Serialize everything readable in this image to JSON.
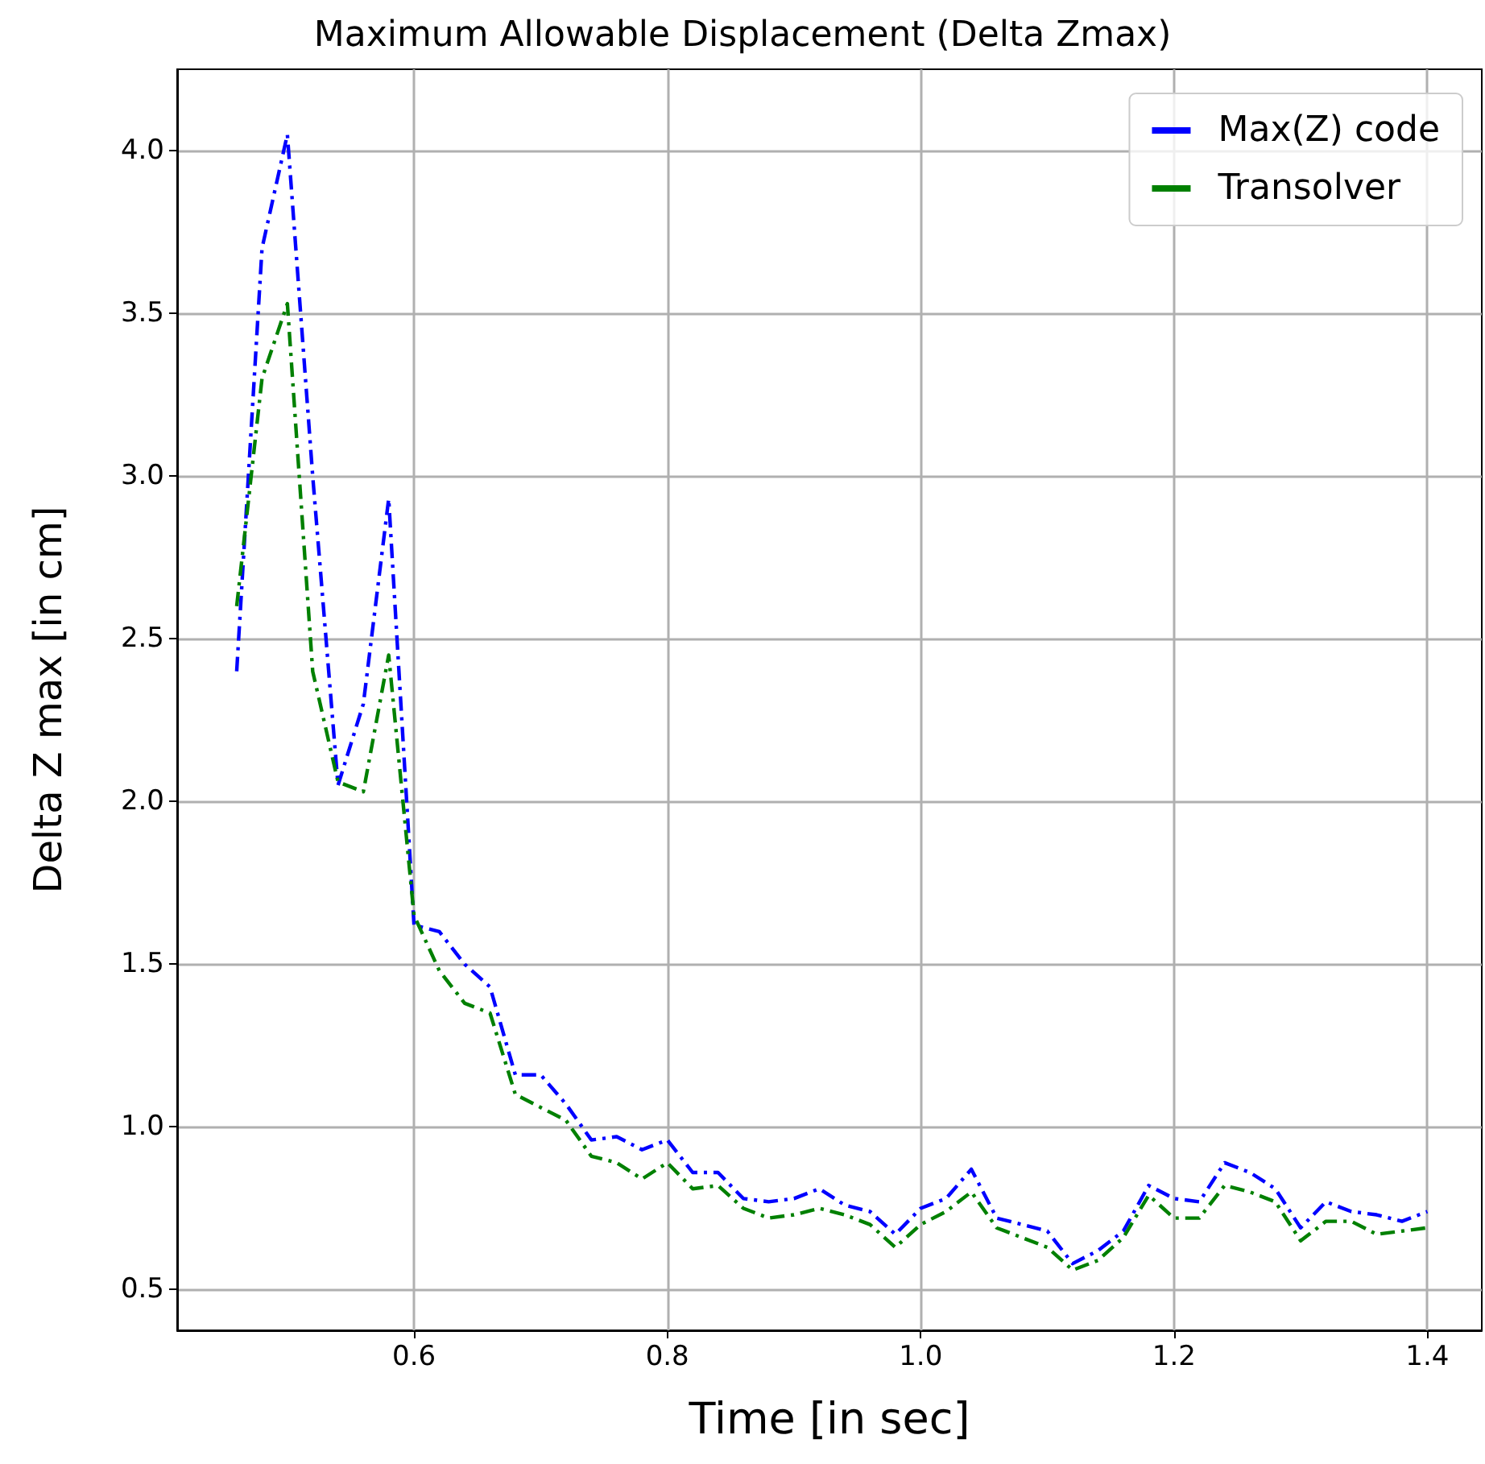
{
  "chart_data": {
    "type": "line",
    "title": "Maximum Allowable Displacement (Delta Zmax)",
    "xlabel": "Time [in sec]",
    "ylabel": "Delta Z max [in cm]",
    "x": [
      0.46,
      0.48,
      0.5,
      0.52,
      0.54,
      0.56,
      0.58,
      0.6,
      0.62,
      0.64,
      0.66,
      0.68,
      0.7,
      0.72,
      0.74,
      0.76,
      0.78,
      0.8,
      0.82,
      0.84,
      0.86,
      0.88,
      0.9,
      0.92,
      0.94,
      0.96,
      0.98,
      1.0,
      1.02,
      1.04,
      1.06,
      1.08,
      1.1,
      1.12,
      1.14,
      1.16,
      1.18,
      1.2,
      1.22,
      1.24,
      1.26,
      1.28,
      1.3,
      1.32,
      1.34,
      1.36,
      1.38,
      1.4
    ],
    "series": [
      {
        "name": "Max(Z) code",
        "color": "#0000ff",
        "values": [
          2.4,
          3.7,
          4.05,
          3.0,
          2.05,
          2.3,
          2.93,
          1.62,
          1.6,
          1.5,
          1.43,
          1.16,
          1.16,
          1.07,
          0.96,
          0.97,
          0.93,
          0.96,
          0.86,
          0.86,
          0.78,
          0.77,
          0.78,
          0.81,
          0.76,
          0.74,
          0.67,
          0.75,
          0.78,
          0.87,
          0.72,
          0.7,
          0.68,
          0.58,
          0.62,
          0.68,
          0.82,
          0.78,
          0.77,
          0.89,
          0.86,
          0.81,
          0.69,
          0.77,
          0.74,
          0.73,
          0.71,
          0.74
        ]
      },
      {
        "name": "Transolver",
        "color": "#008000",
        "values": [
          2.6,
          3.3,
          3.53,
          2.4,
          2.06,
          2.03,
          2.45,
          1.65,
          1.48,
          1.38,
          1.35,
          1.1,
          1.06,
          1.02,
          0.91,
          0.89,
          0.84,
          0.89,
          0.81,
          0.82,
          0.75,
          0.72,
          0.73,
          0.75,
          0.73,
          0.7,
          0.63,
          0.7,
          0.74,
          0.8,
          0.69,
          0.66,
          0.63,
          0.56,
          0.59,
          0.66,
          0.79,
          0.72,
          0.72,
          0.82,
          0.8,
          0.77,
          0.65,
          0.71,
          0.71,
          0.67,
          0.68,
          0.69
        ]
      }
    ],
    "xlim": [
      0.413,
      1.443
    ],
    "ylim": [
      0.375,
      4.25
    ],
    "xticks": [
      {
        "value": 0.6,
        "label": "0.6"
      },
      {
        "value": 0.8,
        "label": "0.8"
      },
      {
        "value": 1.0,
        "label": "1.0"
      },
      {
        "value": 1.2,
        "label": "1.2"
      },
      {
        "value": 1.4,
        "label": "1.4"
      }
    ],
    "yticks": [
      {
        "value": 0.5,
        "label": "0.5"
      },
      {
        "value": 1.0,
        "label": "1.0"
      },
      {
        "value": 1.5,
        "label": "1.5"
      },
      {
        "value": 2.0,
        "label": "2.0"
      },
      {
        "value": 2.5,
        "label": "2.5"
      },
      {
        "value": 3.0,
        "label": "3.0"
      },
      {
        "value": 3.5,
        "label": "3.5"
      },
      {
        "value": 4.0,
        "label": "4.0"
      }
    ],
    "grid": true,
    "legend": "top right",
    "marker": "none",
    "line_style": "dashed"
  }
}
